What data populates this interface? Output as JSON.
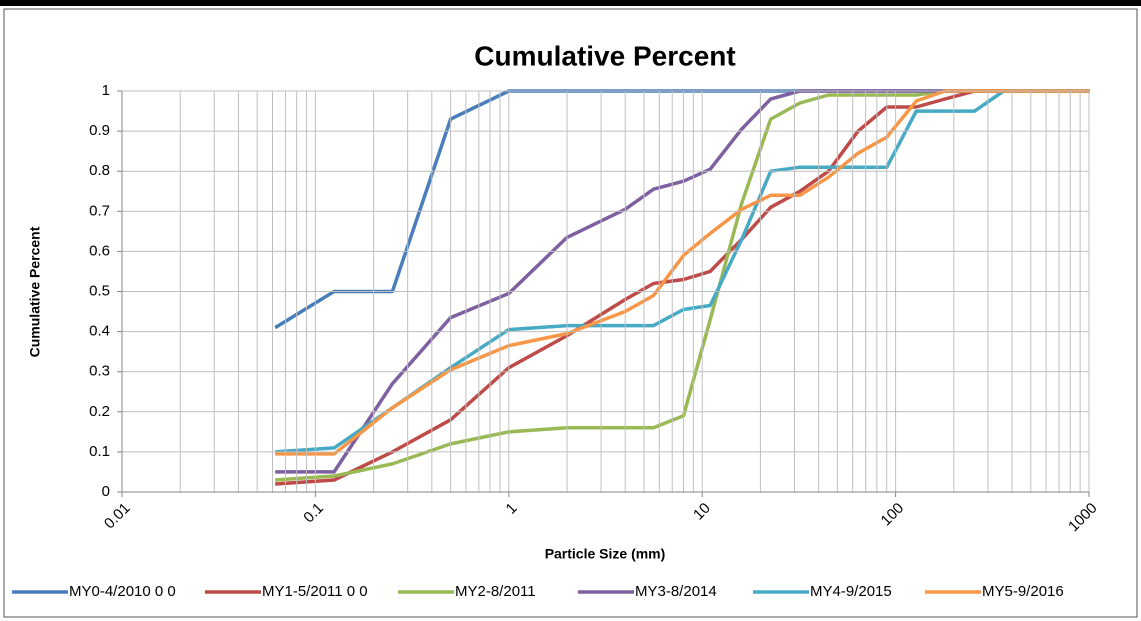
{
  "chart_data": {
    "type": "line",
    "title": "Cumulative Percent",
    "x_label": "Particle Size (mm)",
    "y_label": "Cumulative Percent",
    "x": [
      0.062,
      0.125,
      0.25,
      0.5,
      1,
      2,
      4,
      5.6,
      8,
      11,
      16,
      22.6,
      32,
      45,
      64,
      90,
      128,
      180,
      256,
      362,
      512,
      1024
    ],
    "xlim": [
      0.01,
      1000
    ],
    "xticks": [
      0.01,
      0.1,
      1,
      10,
      100,
      1000
    ],
    "xlog": true,
    "ylim": [
      0,
      1
    ],
    "yticks": [
      0,
      0.1,
      0.2,
      0.3,
      0.4,
      0.5,
      0.6,
      0.7,
      0.8,
      0.9,
      1
    ],
    "grid": true,
    "legend": "bottom",
    "series": [
      {
        "name": "MY0-4/2010 0 0",
        "color": "#4a7ebb",
        "values": [
          0.41,
          0.5,
          0.5,
          0.93,
          1,
          1,
          1,
          1,
          1,
          1,
          1,
          1,
          1,
          1,
          1,
          1,
          1,
          1,
          1,
          1,
          1,
          1
        ]
      },
      {
        "name": "MY1-5/2011 0 0",
        "color": "#be4b48",
        "values": [
          0.02,
          0.03,
          0.1,
          0.18,
          0.31,
          0.39,
          0.48,
          0.52,
          0.53,
          0.55,
          0.63,
          0.71,
          0.75,
          0.8,
          0.9,
          0.96,
          0.96,
          0.98,
          1,
          1,
          1,
          1
        ]
      },
      {
        "name": "MY2-8/2011",
        "color": "#98b954",
        "values": [
          0.03,
          0.04,
          0.07,
          0.12,
          0.15,
          0.16,
          0.16,
          0.16,
          0.19,
          0.43,
          0.72,
          0.93,
          0.97,
          0.99,
          0.99,
          0.99,
          0.99,
          1,
          1,
          1,
          1,
          1
        ]
      },
      {
        "name": "MY3-8/2014",
        "color": "#7d60a0",
        "values": [
          0.05,
          0.05,
          0.27,
          0.435,
          0.495,
          0.635,
          0.705,
          0.755,
          0.775,
          0.805,
          0.905,
          0.98,
          1,
          1,
          1,
          1,
          1,
          1,
          1,
          1,
          1,
          1
        ]
      },
      {
        "name": "MY4-9/2015",
        "color": "#46aac5",
        "values": [
          0.1,
          0.11,
          0.21,
          0.31,
          0.405,
          0.415,
          0.415,
          0.415,
          0.455,
          0.465,
          0.63,
          0.8,
          0.81,
          0.81,
          0.81,
          0.81,
          0.95,
          0.95,
          0.95,
          1,
          1,
          1
        ]
      },
      {
        "name": "MY5-9/2016",
        "color": "#f79646",
        "values": [
          0.095,
          0.095,
          0.21,
          0.305,
          0.365,
          0.395,
          0.45,
          0.49,
          0.59,
          0.645,
          0.705,
          0.74,
          0.74,
          0.785,
          0.845,
          0.885,
          0.975,
          1,
          1,
          1,
          1,
          1
        ]
      }
    ]
  }
}
